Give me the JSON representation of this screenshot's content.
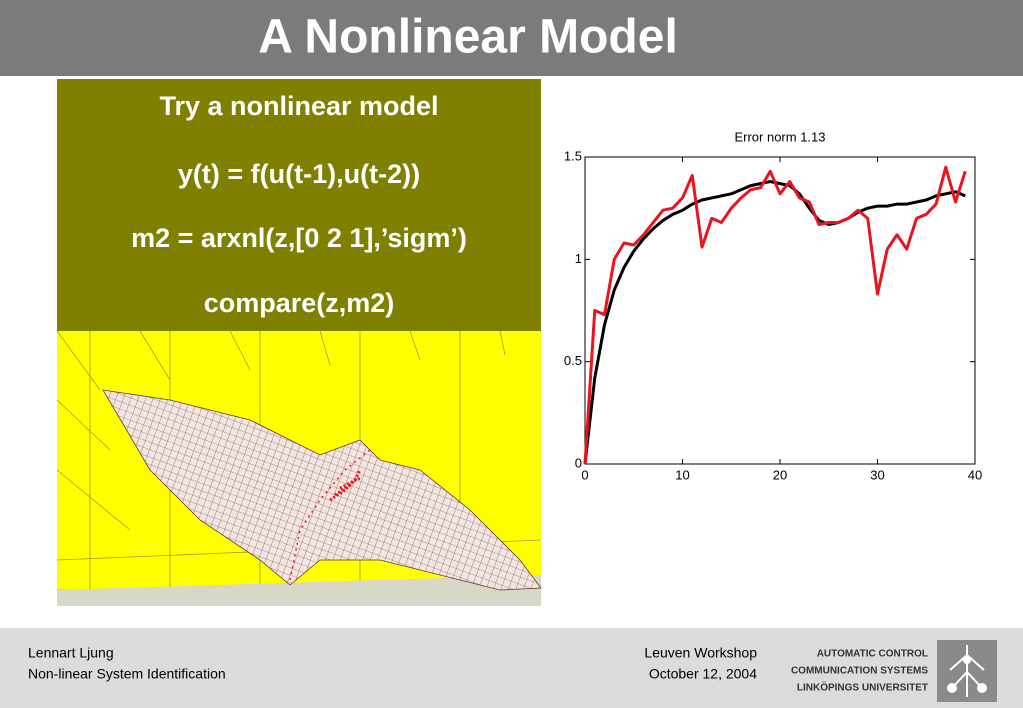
{
  "header": {
    "title": "A Nonlinear Model"
  },
  "box": {
    "lines": [
      "Try a nonlinear model",
      "y(t) = f(u(t-1),u(t-2))",
      "m2 = arxnl(z,[0 2 1],’sigm’)",
      "compare(z,m2)"
    ]
  },
  "chart_data": {
    "type": "line",
    "title": "Error norm 1.13",
    "x": [
      0,
      1,
      2,
      3,
      4,
      5,
      6,
      7,
      8,
      9,
      10,
      11,
      12,
      13,
      14,
      15,
      16,
      17,
      18,
      19,
      20,
      21,
      22,
      23,
      24,
      25,
      26,
      27,
      28,
      29,
      30,
      31,
      32,
      33,
      34,
      35,
      36,
      37,
      38,
      39
    ],
    "series": [
      {
        "color": "#000000",
        "values": [
          0,
          0.42,
          0.68,
          0.85,
          0.96,
          1.04,
          1.1,
          1.15,
          1.19,
          1.22,
          1.24,
          1.27,
          1.29,
          1.3,
          1.31,
          1.32,
          1.34,
          1.36,
          1.37,
          1.38,
          1.37,
          1.36,
          1.32,
          1.25,
          1.19,
          1.17,
          1.18,
          1.2,
          1.23,
          1.25,
          1.26,
          1.26,
          1.27,
          1.27,
          1.28,
          1.29,
          1.31,
          1.32,
          1.33,
          1.31
        ]
      },
      {
        "color": "#e8141e",
        "values": [
          0,
          0.75,
          0.73,
          1.0,
          1.08,
          1.07,
          1.12,
          1.18,
          1.24,
          1.25,
          1.3,
          1.41,
          1.06,
          1.2,
          1.18,
          1.25,
          1.3,
          1.34,
          1.35,
          1.43,
          1.32,
          1.38,
          1.3,
          1.28,
          1.17,
          1.18,
          1.18,
          1.2,
          1.24,
          1.2,
          0.83,
          1.05,
          1.12,
          1.05,
          1.2,
          1.22,
          1.27,
          1.45,
          1.28,
          1.43
        ]
      }
    ],
    "xlim": [
      0,
      40
    ],
    "ylim": [
      0,
      1.5
    ],
    "xticks": [
      0,
      10,
      20,
      30,
      40
    ],
    "yticks": [
      0,
      0.5,
      1,
      1.5
    ]
  },
  "footer": {
    "author": "Lennart Ljung",
    "course": "Non-linear System Identification",
    "event": "Leuven Workshop",
    "date": "October 12, 2004",
    "logo": [
      "AUTOMATIC CONTROL",
      "COMMUNICATION SYSTEMS",
      "LINKÖPINGS UNIVERSITET"
    ]
  }
}
